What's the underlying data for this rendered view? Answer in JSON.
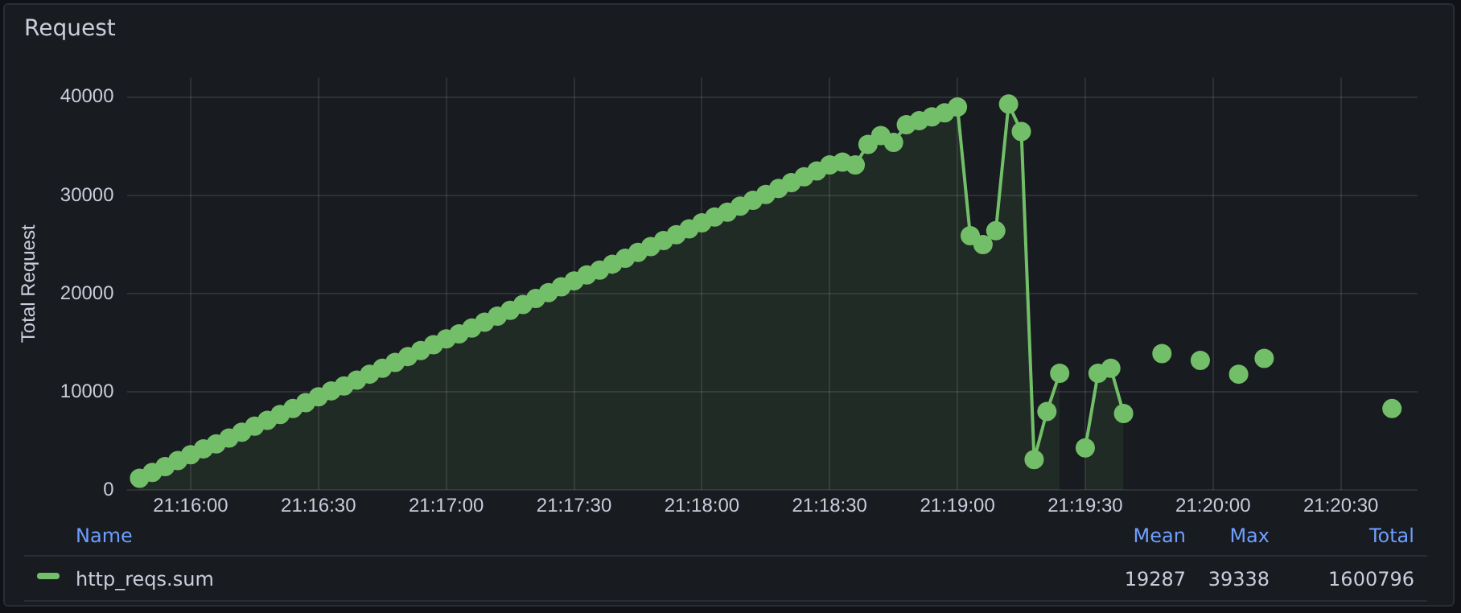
{
  "chart_data": {
    "type": "area",
    "title": "Request",
    "ylabel": "Total Request",
    "xlim": [
      21.2625,
      21.346667
    ],
    "xticks": [
      {
        "value": 21.266667,
        "label": "21:16:00"
      },
      {
        "value": 21.275,
        "label": "21:16:30"
      },
      {
        "value": 21.283333,
        "label": "21:17:00"
      },
      {
        "value": 21.291667,
        "label": "21:17:30"
      },
      {
        "value": 21.3,
        "label": "21:18:00"
      },
      {
        "value": 21.308333,
        "label": "21:18:30"
      },
      {
        "value": 21.316667,
        "label": "21:19:00"
      },
      {
        "value": 21.325,
        "label": "21:19:30"
      },
      {
        "value": 21.333333,
        "label": "21:20:00"
      },
      {
        "value": 21.341667,
        "label": "21:20:30"
      }
    ],
    "ylim": [
      0,
      42000
    ],
    "yticks": [
      0,
      10000,
      20000,
      30000,
      40000
    ],
    "grid": true,
    "legend": "bottom",
    "marker": "circle",
    "line_style": "solid",
    "annotations": [
      "Name",
      "Mean",
      "Max",
      "Total",
      "19287",
      "39338",
      "1600796"
    ],
    "series": [
      {
        "name": "http_reqs.sum",
        "color": "#73bf69",
        "x": [
          21.263333,
          21.264167,
          21.265,
          21.265833,
          21.266667,
          21.2675,
          21.268333,
          21.269167,
          21.27,
          21.270833,
          21.271667,
          21.2725,
          21.273333,
          21.274167,
          21.275,
          21.275833,
          21.276667,
          21.2775,
          21.278333,
          21.279167,
          21.28,
          21.280833,
          21.281667,
          21.2825,
          21.283333,
          21.284167,
          21.285,
          21.285833,
          21.286667,
          21.2875,
          21.288333,
          21.289167,
          21.29,
          21.290833,
          21.291667,
          21.2925,
          21.293333,
          21.294167,
          21.295,
          21.295833,
          21.296667,
          21.2975,
          21.298333,
          21.299167,
          21.3,
          21.300833,
          21.301667,
          21.3025,
          21.303333,
          21.304167,
          21.305,
          21.305833,
          21.306667,
          21.3075,
          21.308333,
          21.309167,
          21.31,
          21.310833,
          21.311667,
          21.3125,
          21.313333,
          21.314167,
          21.315,
          21.315833,
          21.316667,
          21.3175,
          21.318333,
          21.319167,
          21.32,
          21.320833,
          21.321667,
          21.3225,
          21.323333,
          21.324167,
          21.325,
          21.325833,
          21.326667,
          21.3275
        ],
        "values": [
          1200,
          1800,
          2400,
          3000,
          3600,
          4200,
          4700,
          5300,
          5900,
          6500,
          7100,
          7700,
          8300,
          8900,
          9500,
          10100,
          10600,
          11200,
          11800,
          12400,
          13000,
          13600,
          14200,
          14800,
          15400,
          15900,
          16500,
          17100,
          17700,
          18300,
          18900,
          19500,
          20100,
          20700,
          21300,
          21900,
          22400,
          23000,
          23600,
          24200,
          24800,
          25400,
          26000,
          26600,
          27200,
          27800,
          28300,
          28900,
          29500,
          30100,
          30700,
          31300,
          31900,
          32500,
          33100,
          33400,
          33100,
          35200,
          36100,
          35400,
          37200,
          37600,
          38000,
          38400,
          39000,
          25900,
          25000,
          26400,
          39300,
          36500,
          3100,
          8000,
          11900,
          null,
          4300,
          11900,
          12400,
          7800
        ]
      },
      {
        "type": "scatter",
        "color": "#73bf69",
        "x": [
          21.33,
          21.3325,
          21.335,
          21.336667,
          21.345
        ],
        "values": [
          13900,
          13200,
          11800,
          13400,
          8300
        ]
      }
    ]
  }
}
